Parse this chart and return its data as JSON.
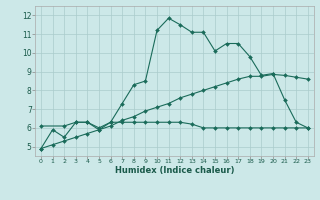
{
  "xlabel": "Humidex (Indice chaleur)",
  "bg_color": "#cce8e8",
  "grid_color": "#aacccc",
  "line_color": "#1a6b5a",
  "xlim": [
    -0.5,
    23.5
  ],
  "ylim": [
    4.5,
    12.5
  ],
  "xticks": [
    0,
    1,
    2,
    3,
    4,
    5,
    6,
    7,
    8,
    9,
    10,
    11,
    12,
    13,
    14,
    15,
    16,
    17,
    18,
    19,
    20,
    21,
    22,
    23
  ],
  "yticks": [
    5,
    6,
    7,
    8,
    9,
    10,
    11,
    12
  ],
  "line1_x": [
    0,
    1,
    2,
    3,
    4,
    5,
    6,
    7,
    8,
    9,
    10,
    11,
    12,
    13,
    14,
    15,
    16,
    17,
    18,
    19,
    20,
    21,
    22,
    23
  ],
  "line1_y": [
    4.9,
    5.9,
    5.5,
    6.3,
    6.3,
    5.9,
    6.3,
    7.3,
    8.3,
    8.5,
    11.2,
    11.85,
    11.5,
    11.1,
    11.1,
    10.1,
    10.5,
    10.5,
    9.8,
    8.8,
    8.9,
    7.5,
    6.3,
    6.0
  ],
  "line2_x": [
    0,
    2,
    3,
    4,
    5,
    6,
    7,
    8,
    9,
    10,
    11,
    12,
    13,
    14,
    15,
    16,
    17,
    18,
    19,
    20,
    21,
    22,
    23
  ],
  "line2_y": [
    6.1,
    6.1,
    6.3,
    6.3,
    6.0,
    6.3,
    6.3,
    6.3,
    6.3,
    6.3,
    6.3,
    6.3,
    6.2,
    6.0,
    6.0,
    6.0,
    6.0,
    6.0,
    6.0,
    6.0,
    6.0,
    6.0,
    6.0
  ],
  "line3_x": [
    0,
    1,
    2,
    3,
    4,
    5,
    6,
    7,
    8,
    9,
    10,
    11,
    12,
    13,
    14,
    15,
    16,
    17,
    18,
    19,
    20,
    21,
    22,
    23
  ],
  "line3_y": [
    4.9,
    5.1,
    5.3,
    5.5,
    5.7,
    5.9,
    6.1,
    6.4,
    6.6,
    6.9,
    7.1,
    7.3,
    7.6,
    7.8,
    8.0,
    8.2,
    8.4,
    8.6,
    8.75,
    8.75,
    8.85,
    8.8,
    8.7,
    8.6
  ]
}
